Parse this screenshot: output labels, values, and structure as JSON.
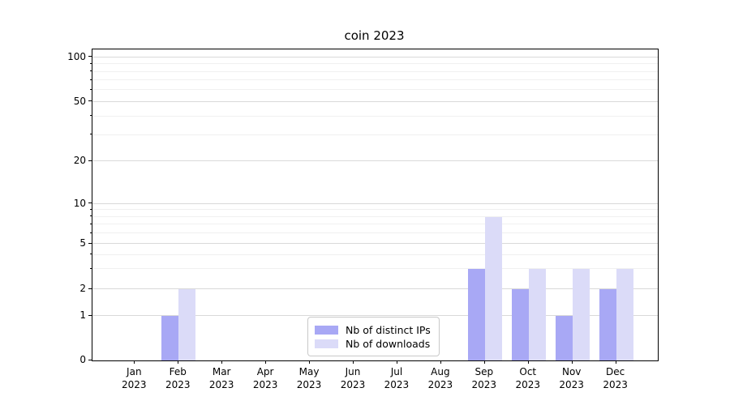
{
  "title": "coin 2023",
  "chart_data": {
    "type": "bar",
    "title": "coin 2023",
    "categories": [
      "Jan",
      "Feb",
      "Mar",
      "Apr",
      "May",
      "Jun",
      "Jul",
      "Aug",
      "Sep",
      "Oct",
      "Nov",
      "Dec"
    ],
    "category_year": "2023",
    "series": [
      {
        "name": "Nb of distinct IPs",
        "color": "#a8a8f5",
        "values": [
          0,
          1,
          0,
          0,
          0,
          0,
          0,
          0,
          3,
          2,
          1,
          2
        ]
      },
      {
        "name": "Nb of downloads",
        "color": "#dbdbf8",
        "values": [
          0,
          2,
          0,
          0,
          0,
          0,
          0,
          0,
          8,
          3,
          3,
          3
        ]
      }
    ],
    "yscale": "symlog",
    "yticks": [
      0,
      1,
      2,
      5,
      10,
      20,
      50,
      100
    ],
    "minor_yticks": [
      3,
      4,
      6,
      7,
      8,
      9,
      30,
      40,
      60,
      70,
      80,
      90
    ],
    "ylim": [
      0,
      113
    ],
    "xlabel": "",
    "ylabel": "",
    "grid": "horizontal",
    "legend_position": "lower-center-inside"
  }
}
